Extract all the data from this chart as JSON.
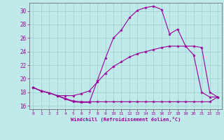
{
  "xlabel": "Windchill (Refroidissement éolien,°C)",
  "background_color": "#c0eaea",
  "grid_color": "#90c8c8",
  "line_color": "#990099",
  "xlim": [
    -0.5,
    23.5
  ],
  "ylim": [
    15.5,
    31.2
  ],
  "yticks": [
    16,
    18,
    20,
    22,
    24,
    26,
    28,
    30
  ],
  "xticks": [
    0,
    1,
    2,
    3,
    4,
    5,
    6,
    7,
    8,
    9,
    10,
    11,
    12,
    13,
    14,
    15,
    16,
    17,
    18,
    19,
    20,
    21,
    22,
    23
  ],
  "curve1_x": [
    0,
    1,
    2,
    3,
    4,
    5,
    6,
    7,
    8,
    9,
    10,
    11,
    12,
    13,
    14,
    15,
    16,
    17,
    18,
    19,
    20,
    21,
    22,
    23
  ],
  "curve1_y": [
    18.7,
    18.2,
    17.9,
    17.5,
    17.0,
    16.6,
    16.5,
    16.5,
    19.7,
    23.0,
    26.0,
    27.2,
    29.0,
    30.1,
    30.5,
    30.7,
    30.2,
    26.6,
    27.3,
    24.8,
    23.5,
    18.0,
    17.3,
    17.3
  ],
  "curve2_x": [
    0,
    1,
    2,
    3,
    4,
    5,
    6,
    7,
    8,
    9,
    10,
    11,
    12,
    13,
    14,
    15,
    16,
    17,
    18,
    19,
    20,
    21,
    22,
    23
  ],
  "curve2_y": [
    18.7,
    18.2,
    17.9,
    17.5,
    17.1,
    16.7,
    16.6,
    16.6,
    16.6,
    16.6,
    16.6,
    16.6,
    16.6,
    16.6,
    16.6,
    16.6,
    16.6,
    16.6,
    16.6,
    16.6,
    16.6,
    16.6,
    16.6,
    17.3
  ],
  "curve3_x": [
    0,
    1,
    2,
    3,
    4,
    5,
    6,
    7,
    8,
    9,
    10,
    11,
    12,
    13,
    14,
    15,
    16,
    17,
    18,
    19,
    20,
    21,
    22,
    23
  ],
  "curve3_y": [
    18.7,
    18.2,
    17.9,
    17.5,
    17.5,
    17.5,
    17.8,
    18.2,
    19.5,
    20.8,
    21.8,
    22.5,
    23.2,
    23.7,
    24.0,
    24.3,
    24.6,
    24.8,
    24.8,
    24.8,
    24.8,
    24.6,
    18.0,
    17.3
  ]
}
